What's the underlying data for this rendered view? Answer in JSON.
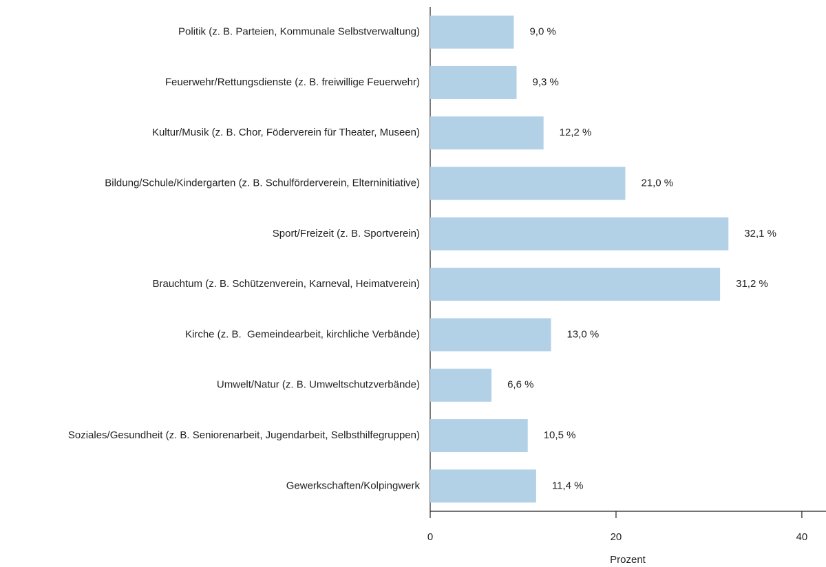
{
  "chart_data": {
    "type": "bar",
    "orientation": "horizontal",
    "categories": [
      "Politik (z. B. Parteien, Kommunale Selbstverwaltung)",
      "Feuerwehr/Rettungsdienste (z. B. freiwillige Feuerwehr)",
      "Kultur/Musik (z. B. Chor, Föderverein für Theater, Museen)",
      "Bildung/Schule/Kindergarten (z. B. Schulförderverein, Elterninitiative)",
      "Sport/Freizeit (z. B. Sportverein)",
      "Brauchtum (z. B. Schützenverein, Karneval, Heimatverein)",
      "Kirche (z. B.  Gemeindearbeit, kirchliche Verbände)",
      "Umwelt/Natur (z. B. Umweltschutzverbände)",
      "Soziales/Gesundheit (z. B. Seniorenarbeit, Jugendarbeit, Selbsthilfegruppen)",
      "Gewerkschaften/Kolpingwerk"
    ],
    "values": [
      9.0,
      9.3,
      12.2,
      21.0,
      32.1,
      31.2,
      13.0,
      6.6,
      10.5,
      11.4
    ],
    "value_labels": [
      "9,0 %",
      "9,3 %",
      "12,2 %",
      "21,0 %",
      "32,1 %",
      "31,2 %",
      "13,0 %",
      "6,6 %",
      "10,5 %",
      "11,4 %"
    ],
    "color": "#b3d1e6",
    "xlabel": "Prozent",
    "xlim": [
      0,
      42.6
    ],
    "xticks": [
      0,
      20,
      40
    ]
  }
}
